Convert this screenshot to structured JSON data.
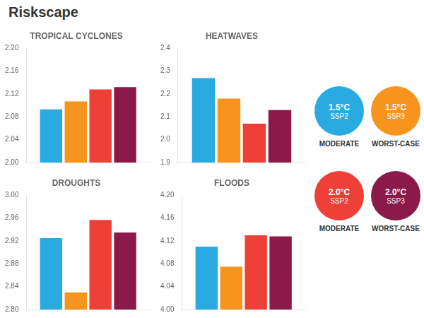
{
  "title": "Riskscape",
  "chart_data": [
    {
      "type": "bar",
      "title": "TROPICAL CYCLONES",
      "categories": [
        null
      ],
      "series": [
        {
          "name": "1.5°C\nSSP2\nMODERATE",
          "color": "#29ABE2",
          "values": [
            2.093
          ]
        },
        {
          "name": "1.5°C\nSSP3\nWORST-CASE",
          "color": "#F7941D",
          "values": [
            2.107
          ]
        },
        {
          "name": "2.0°C\nSSP2\nMODERATE",
          "color": "#EE4036",
          "values": [
            2.128
          ]
        },
        {
          "name": "2.0°C\nSSP3\nWORST-CASE",
          "color": "#8B1A4A",
          "values": [
            2.132
          ]
        }
      ],
      "ylim": [
        2.0,
        2.2
      ],
      "yticks": [
        {
          "value": 2.0,
          "label": "2.00"
        },
        2.04,
        2.08,
        2.12,
        2.16,
        {
          "value": 2.2,
          "label": "2.20"
        }
      ],
      "grid": false,
      "tick_labels": "y"
    },
    {
      "type": "bar",
      "title": "HEATWAVES",
      "categories": [
        null
      ],
      "series": [
        {
          "name": "1.5°C\nSSP2\nMODERATE",
          "color": "#29ABE2",
          "values": [
            2.27
          ]
        },
        {
          "name": "1.5°C\nSSP3\nWORST-CASE",
          "color": "#F7941D",
          "values": [
            2.18
          ]
        },
        {
          "name": "2.0°C\nSSP2\nMODERATE",
          "color": "#EE4036",
          "values": [
            2.07
          ]
        },
        {
          "name": "2.0°C\nSSP3\nWORST-CASE",
          "color": "#8B1A4A",
          "values": [
            2.13
          ]
        }
      ],
      "ylim": [
        1.9,
        2.4
      ],
      "yticks": [
        1.9,
        {
          "value": 2.0,
          "label": "2.0"
        },
        2.1,
        2.2,
        2.3,
        2.4
      ],
      "grid": false,
      "tick_labels": "y"
    },
    {
      "type": "bar",
      "title": "DROUGHTS",
      "categories": [
        null
      ],
      "series": [
        {
          "name": "1.5°C\nSSP2\nMODERATE",
          "color": "#29ABE2",
          "values": [
            2.925
          ]
        },
        {
          "name": "1.5°C\nSSP3\nWORST-CASE",
          "color": "#F7941D",
          "values": [
            2.83
          ]
        },
        {
          "name": "2.0°C\nSSP2\nMODERATE",
          "color": "#EE4036",
          "values": [
            2.957
          ]
        },
        {
          "name": "2.0°C\nSSP3\nWORST-CASE",
          "color": "#8B1A4A",
          "values": [
            2.935
          ]
        }
      ],
      "ylim": [
        2.8,
        3.0
      ],
      "yticks": [
        {
          "value": 2.8,
          "label": "2.80"
        },
        2.84,
        2.88,
        2.92,
        2.96,
        {
          "value": 3.0,
          "label": "3.00"
        }
      ],
      "grid": false,
      "tick_labels": "y"
    },
    {
      "type": "bar",
      "title": "FLOODS",
      "categories": [
        null
      ],
      "series": [
        {
          "name": "1.5°C\nSSP2\nMODERATE",
          "color": "#29ABE2",
          "values": [
            4.11
          ]
        },
        {
          "name": "1.5°C\nSSP3\nWORST-CASE",
          "color": "#F7941D",
          "values": [
            4.075
          ]
        },
        {
          "name": "2.0°C\nSSP2\nMODERATE",
          "color": "#EE4036",
          "values": [
            4.13
          ]
        },
        {
          "name": "2.0°C\nSSP3\nWORST-CASE",
          "color": "#8B1A4A",
          "values": [
            4.128
          ]
        }
      ],
      "ylim": [
        4.0,
        4.2
      ],
      "yticks": [
        {
          "value": 4.0,
          "label": "4.00"
        },
        4.04,
        4.08,
        4.12,
        4.16,
        {
          "value": 4.2,
          "label": "4.20"
        }
      ],
      "grid": false,
      "tick_labels": "y"
    }
  ]
}
